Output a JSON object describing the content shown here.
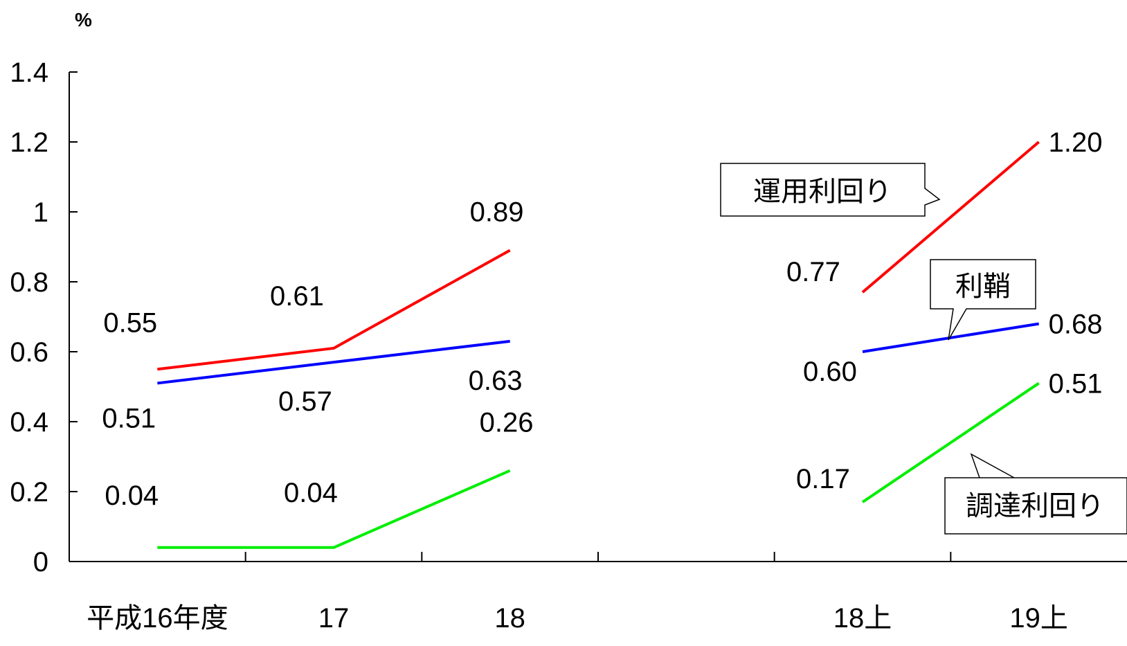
{
  "chart_data": {
    "type": "line",
    "unit": "%",
    "ylim": [
      0,
      1.4
    ],
    "yticks": [
      "0",
      "0.2",
      "0.4",
      "0.6",
      "0.8",
      "1",
      "1.2",
      "1.4"
    ],
    "categories": [
      "平成16年度",
      "17",
      "18",
      "",
      "18上",
      "19上"
    ],
    "grid": false,
    "series": [
      {
        "name": "運用利回り",
        "color": "#ff0000",
        "segments": [
          {
            "points": [
              [
                0,
                0.55
              ],
              [
                1,
                0.61
              ],
              [
                2,
                0.89
              ]
            ],
            "labels": [
              "0.55",
              "0.61",
              "0.89"
            ]
          },
          {
            "points": [
              [
                4,
                0.77
              ],
              [
                5,
                1.2
              ]
            ],
            "labels": [
              "0.77",
              "1.20"
            ]
          }
        ]
      },
      {
        "name": "利鞘",
        "color": "#0000ff",
        "segments": [
          {
            "points": [
              [
                0,
                0.51
              ],
              [
                1,
                0.57
              ],
              [
                2,
                0.63
              ]
            ],
            "labels": [
              "0.51",
              "0.57",
              "0.63"
            ]
          },
          {
            "points": [
              [
                4,
                0.6
              ],
              [
                5,
                0.68
              ]
            ],
            "labels": [
              "0.60",
              "0.68"
            ]
          }
        ]
      },
      {
        "name": "調達利回り",
        "color": "#00ee00",
        "segments": [
          {
            "points": [
              [
                0,
                0.04
              ],
              [
                1,
                0.04
              ],
              [
                2,
                0.26
              ]
            ],
            "labels": [
              "0.04",
              "0.04",
              "0.26"
            ]
          },
          {
            "points": [
              [
                4,
                0.17
              ],
              [
                5,
                0.51
              ]
            ],
            "labels": [
              "0.17",
              "0.51"
            ]
          }
        ]
      }
    ]
  }
}
